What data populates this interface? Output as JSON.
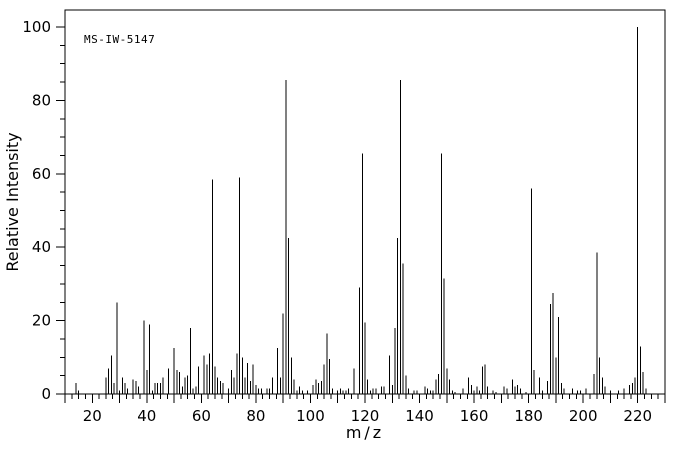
{
  "annotation": "MS-IW-5147",
  "chart_data": {
    "type": "bar",
    "subtype": "mass-spectrum-stick-plot",
    "title": "MS-IW-5147",
    "xlabel": "m/z",
    "ylabel": "Relative Intensity",
    "xlim": [
      10,
      230
    ],
    "ylim": [
      0,
      100
    ],
    "x_tick_labels": [
      20,
      40,
      60,
      80,
      100,
      120,
      140,
      160,
      180,
      200,
      220
    ],
    "x_long_tick_step": 10,
    "x_short_tick_step": 2.5,
    "y_tick_labels": [
      0,
      20,
      40,
      60,
      80,
      100
    ],
    "y_label_step": 20,
    "y_short_tick_step": 5,
    "grid": false,
    "legend": "none",
    "background": "#ffffff",
    "line_color": "#000000",
    "peaks": [
      [
        14,
        3
      ],
      [
        15,
        1
      ],
      [
        25,
        4.5
      ],
      [
        26,
        7
      ],
      [
        27,
        10.5
      ],
      [
        28,
        3
      ],
      [
        29,
        25
      ],
      [
        30,
        1
      ],
      [
        31,
        4.5
      ],
      [
        32,
        3
      ],
      [
        33,
        1.5
      ],
      [
        35,
        4
      ],
      [
        36,
        3.5
      ],
      [
        37,
        2
      ],
      [
        39,
        20
      ],
      [
        40,
        6.5
      ],
      [
        41,
        19
      ],
      [
        42,
        1
      ],
      [
        43,
        3
      ],
      [
        44,
        3
      ],
      [
        45,
        3
      ],
      [
        46,
        4.5
      ],
      [
        48,
        7
      ],
      [
        50,
        12.5
      ],
      [
        51,
        6.5
      ],
      [
        52,
        6
      ],
      [
        53,
        2
      ],
      [
        54,
        4.5
      ],
      [
        55,
        5
      ],
      [
        56,
        18
      ],
      [
        57,
        1.5
      ],
      [
        58,
        2
      ],
      [
        59,
        7.5
      ],
      [
        61,
        10.5
      ],
      [
        62,
        8
      ],
      [
        63,
        11
      ],
      [
        64,
        58.5
      ],
      [
        65,
        7.5
      ],
      [
        66,
        4.5
      ],
      [
        67,
        3.5
      ],
      [
        68,
        3
      ],
      [
        70,
        1.5
      ],
      [
        71,
        6.5
      ],
      [
        72,
        4.5
      ],
      [
        73,
        11
      ],
      [
        74,
        59
      ],
      [
        75,
        10
      ],
      [
        76,
        4.5
      ],
      [
        77,
        8.5
      ],
      [
        78,
        3.5
      ],
      [
        79,
        8
      ],
      [
        80,
        2.5
      ],
      [
        81,
        1.5
      ],
      [
        82,
        1.5
      ],
      [
        84,
        1.5
      ],
      [
        85,
        1.5
      ],
      [
        86,
        4.5
      ],
      [
        88,
        12.5
      ],
      [
        89,
        4.5
      ],
      [
        90,
        22
      ],
      [
        91,
        85.5
      ],
      [
        92,
        42.5
      ],
      [
        93,
        10
      ],
      [
        94,
        4
      ],
      [
        95,
        1
      ],
      [
        96,
        2
      ],
      [
        97,
        1
      ],
      [
        99,
        1
      ],
      [
        101,
        2.5
      ],
      [
        102,
        4
      ],
      [
        103,
        3
      ],
      [
        104,
        3.5
      ],
      [
        105,
        8
      ],
      [
        106,
        16.5
      ],
      [
        107,
        9.5
      ],
      [
        108,
        1.5
      ],
      [
        110,
        1
      ],
      [
        111,
        1.5
      ],
      [
        112,
        1
      ],
      [
        113,
        1
      ],
      [
        114,
        1.5
      ],
      [
        116,
        7
      ],
      [
        118,
        29
      ],
      [
        119,
        65.5
      ],
      [
        120,
        19.5
      ],
      [
        121,
        4
      ],
      [
        122,
        1
      ],
      [
        123,
        1.5
      ],
      [
        124,
        1.5
      ],
      [
        126,
        2
      ],
      [
        127,
        2
      ],
      [
        129,
        10.5
      ],
      [
        130,
        2.5
      ],
      [
        131,
        18
      ],
      [
        132,
        42.5
      ],
      [
        133,
        85.5
      ],
      [
        134,
        35.5
      ],
      [
        135,
        5
      ],
      [
        136,
        1.5
      ],
      [
        138,
        1
      ],
      [
        139,
        1
      ],
      [
        142,
        2
      ],
      [
        143,
        1.5
      ],
      [
        144,
        1
      ],
      [
        145,
        1
      ],
      [
        146,
        4
      ],
      [
        147,
        5.5
      ],
      [
        148,
        65.5
      ],
      [
        149,
        31.5
      ],
      [
        150,
        7
      ],
      [
        151,
        4
      ],
      [
        152,
        1
      ],
      [
        153,
        0.5
      ],
      [
        156,
        1.5
      ],
      [
        158,
        4.5
      ],
      [
        159,
        2.5
      ],
      [
        160,
        1
      ],
      [
        161,
        2
      ],
      [
        162,
        1
      ],
      [
        163,
        7.5
      ],
      [
        164,
        8
      ],
      [
        165,
        2
      ],
      [
        167,
        1
      ],
      [
        168,
        0.5
      ],
      [
        171,
        2
      ],
      [
        172,
        1.5
      ],
      [
        174,
        4
      ],
      [
        175,
        2
      ],
      [
        176,
        2.5
      ],
      [
        177,
        1.5
      ],
      [
        179,
        0.5
      ],
      [
        181,
        56
      ],
      [
        182,
        6.5
      ],
      [
        184,
        4.5
      ],
      [
        185,
        1
      ],
      [
        187,
        3.5
      ],
      [
        188,
        24.5
      ],
      [
        189,
        27.5
      ],
      [
        190,
        10
      ],
      [
        191,
        21
      ],
      [
        192,
        3
      ],
      [
        193,
        1.5
      ],
      [
        196,
        1.5
      ],
      [
        198,
        1
      ],
      [
        199,
        1
      ],
      [
        201,
        1.5
      ],
      [
        204,
        5.5
      ],
      [
        205,
        38.5
      ],
      [
        206,
        10
      ],
      [
        207,
        4.5
      ],
      [
        208,
        2
      ],
      [
        210,
        1
      ],
      [
        213,
        1
      ],
      [
        215,
        1.5
      ],
      [
        217,
        2.5
      ],
      [
        218,
        3
      ],
      [
        219,
        4.5
      ],
      [
        220,
        100
      ],
      [
        221,
        13
      ],
      [
        222,
        6
      ],
      [
        223,
        1.5
      ]
    ]
  }
}
